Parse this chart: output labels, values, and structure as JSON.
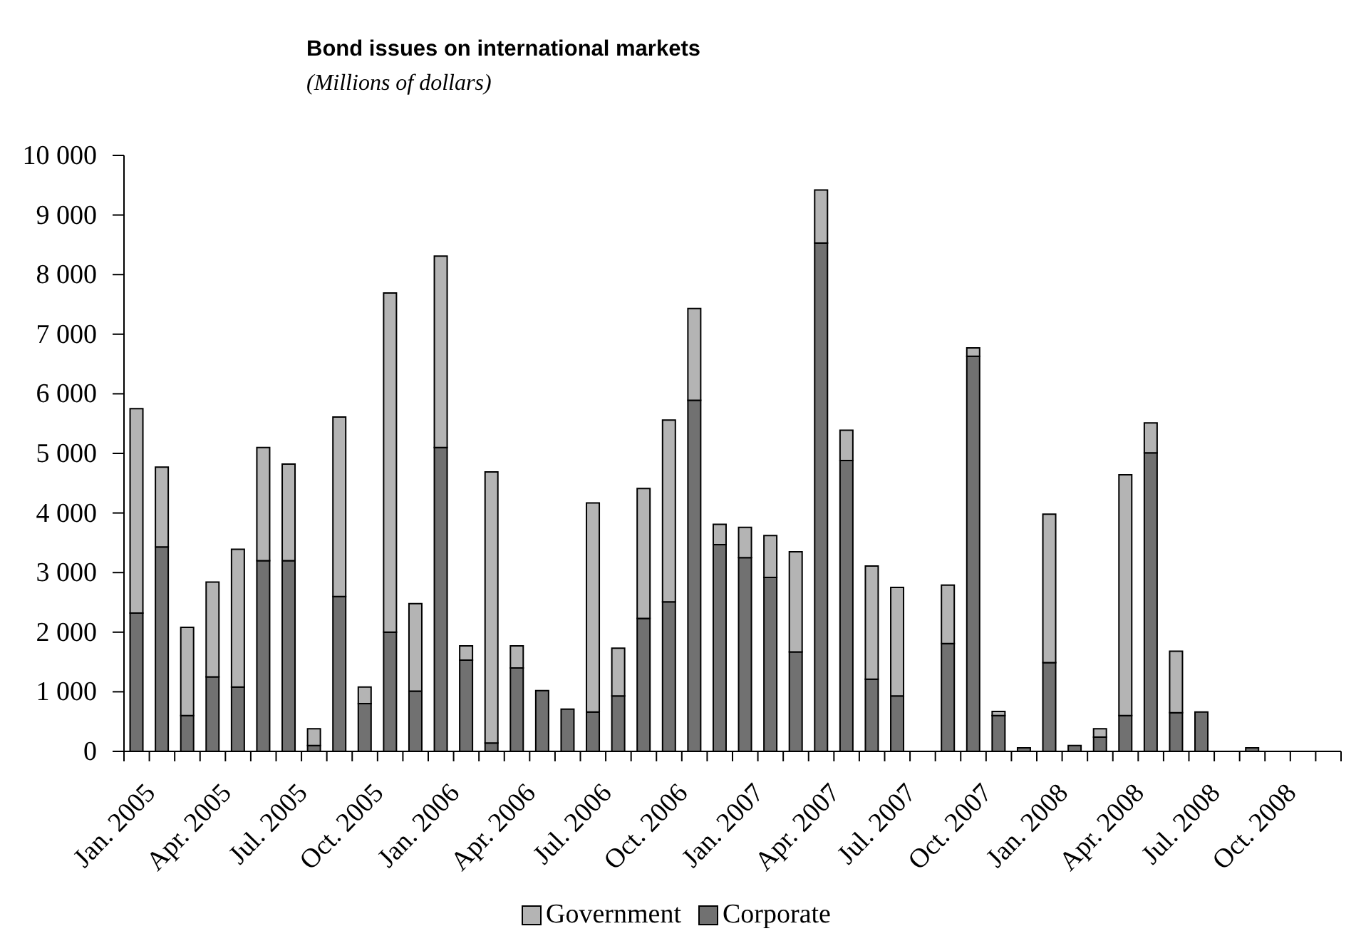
{
  "chart_data": {
    "type": "bar",
    "title": "Bond issues on international markets",
    "subtitle": "(Millions of dollars)",
    "categories": [
      "Jan. 2005",
      null,
      null,
      "Apr. 2005",
      null,
      null,
      "Jul. 2005",
      null,
      null,
      "Oct. 2005",
      null,
      null,
      "Jan. 2006",
      null,
      null,
      "Apr. 2006",
      null,
      null,
      "Jul. 2006",
      null,
      null,
      "Oct. 2006",
      null,
      null,
      "Jan. 2007",
      null,
      null,
      "Apr. 2007",
      null,
      null,
      "Jul. 2007",
      null,
      null,
      "Oct. 2007",
      null,
      null,
      "Jan. 2008",
      null,
      null,
      "Apr. 2008",
      null,
      null,
      "Jul. 2008",
      null,
      null,
      "Oct. 2008",
      null,
      null
    ],
    "series": [
      {
        "name": "Corporate",
        "color": "#717171",
        "values": [
          2320,
          3430,
          600,
          1250,
          1080,
          3200,
          3200,
          100,
          2600,
          800,
          2000,
          1010,
          5100,
          1530,
          140,
          1400,
          1020,
          710,
          660,
          930,
          2230,
          2510,
          5890,
          3470,
          3250,
          2920,
          1670,
          8530,
          4880,
          1210,
          930,
          0,
          1810,
          6630,
          600,
          60,
          1490,
          100,
          240,
          600,
          5010,
          650,
          660,
          0,
          60,
          0,
          0,
          0
        ]
      },
      {
        "name": "Government",
        "color": "#b4b4b4",
        "values": [
          3430,
          1340,
          1480,
          1590,
          2310,
          1900,
          1620,
          280,
          3010,
          280,
          5690,
          1470,
          3210,
          240,
          4550,
          370,
          0,
          0,
          3510,
          800,
          2180,
          3050,
          1540,
          340,
          510,
          700,
          1680,
          890,
          510,
          1900,
          1820,
          0,
          980,
          140,
          70,
          0,
          2490,
          0,
          140,
          4040,
          500,
          1030,
          0,
          0,
          0,
          0,
          0,
          0
        ]
      }
    ],
    "stacked": true,
    "ylim": [
      0,
      10000
    ],
    "yticks": [
      0,
      {
        "value": 1000,
        "label": "1 000"
      },
      {
        "value": 2000,
        "label": "2 000"
      },
      {
        "value": 3000,
        "label": "3 000"
      },
      {
        "value": 4000,
        "label": "4 000"
      },
      {
        "value": 5000,
        "label": "5 000"
      },
      {
        "value": 6000,
        "label": "6 000"
      },
      {
        "value": 7000,
        "label": "7 000"
      },
      {
        "value": 8000,
        "label": "8 000"
      },
      {
        "value": 9000,
        "label": "9 000"
      },
      {
        "value": 10000,
        "label": "10 000"
      }
    ],
    "grid": false,
    "legend": "bottom"
  }
}
